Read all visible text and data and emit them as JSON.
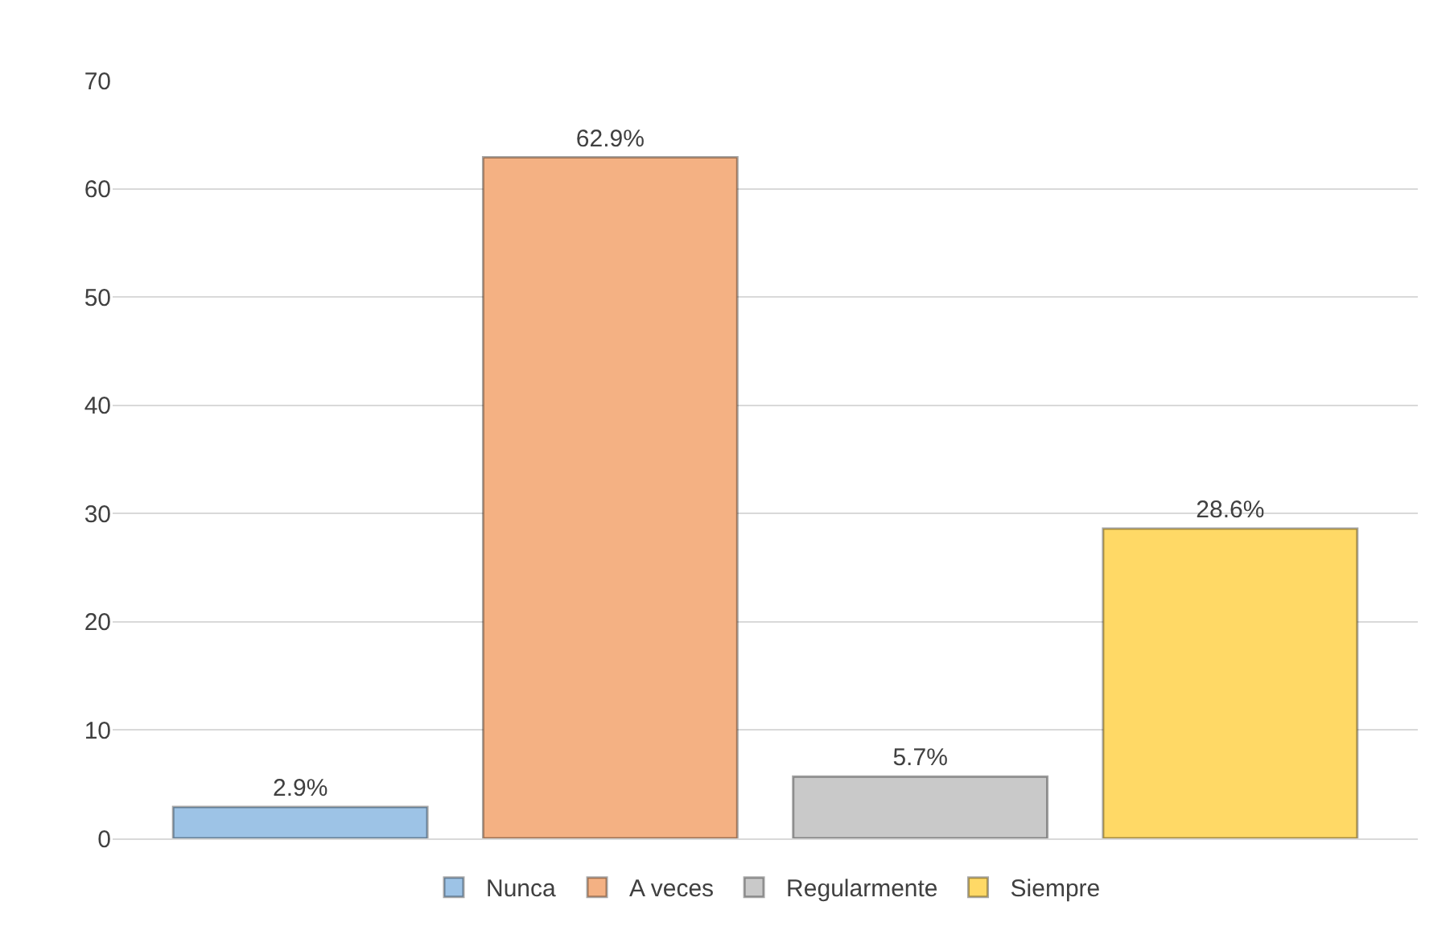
{
  "chart_data": {
    "type": "bar",
    "categories": [
      null
    ],
    "series": [
      {
        "name": "Nunca",
        "color": "#9dc3e6",
        "values": [
          2.9
        ],
        "value_labels": [
          "2.9%"
        ]
      },
      {
        "name": "A veces",
        "color": "#f4b183",
        "values": [
          62.9
        ],
        "value_labels": [
          "62.9%"
        ]
      },
      {
        "name": "Regularmente",
        "color": "#c9c9c9",
        "values": [
          5.7
        ],
        "value_labels": [
          "5.7%"
        ]
      },
      {
        "name": "Siempre",
        "color": "#ffd966",
        "values": [
          28.6
        ],
        "value_labels": [
          "28.6%"
        ]
      }
    ],
    "ylim": [
      0,
      70
    ],
    "yticks": [
      0,
      10,
      20,
      30,
      40,
      50,
      60,
      70
    ],
    "grid": "y",
    "legend": "bottom"
  }
}
